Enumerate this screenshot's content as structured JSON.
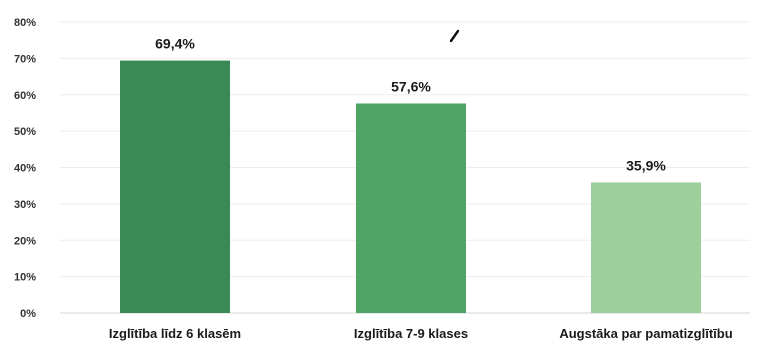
{
  "chart_data": {
    "type": "bar",
    "title": "",
    "xlabel": "",
    "ylabel": "",
    "categories": [
      "Izglītība līdz 6 klasēm",
      "Izglītība 7-9 klases",
      "Augstāka par pamatizglītību"
    ],
    "values": [
      69.4,
      57.6,
      35.9
    ],
    "data_labels": [
      "69,4%",
      "57,6%",
      "35,9%"
    ],
    "bar_colors": [
      "#3b8a55",
      "#4ea565",
      "#9ccf9b"
    ],
    "ylim": [
      0,
      80
    ],
    "y_ticks": [
      0,
      10,
      20,
      30,
      40,
      50,
      60,
      70,
      80
    ],
    "y_tick_labels": [
      "0%",
      "10%",
      "20%",
      "30%",
      "40%",
      "50%",
      "60%",
      "70%",
      "80%"
    ],
    "grid": true,
    "legend": "none"
  }
}
